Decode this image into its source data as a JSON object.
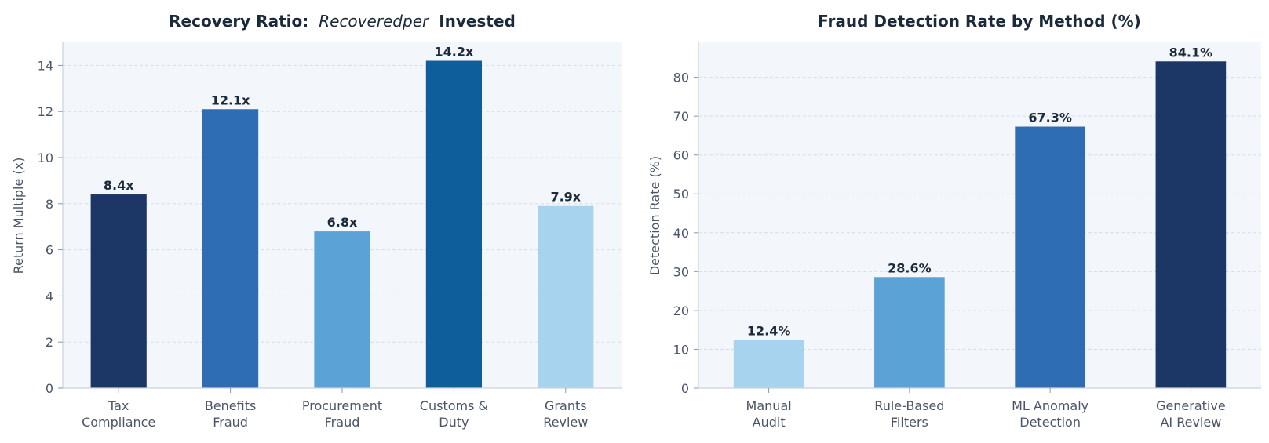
{
  "chart_data": [
    {
      "type": "bar",
      "title_bold_prefix": "Recovery Ratio:",
      "title_italic": "Recoveredper",
      "title_bold_suffix": "Invested",
      "xlabel": "",
      "ylabel": "Return Multiple (x)",
      "ylim": [
        0,
        15
      ],
      "yticks": [
        0,
        2,
        4,
        6,
        8,
        10,
        12,
        14
      ],
      "grid": true,
      "categories": [
        [
          "Tax",
          "Compliance"
        ],
        [
          "Benefits",
          "Fraud"
        ],
        [
          "Procurement",
          "Fraud"
        ],
        [
          "Customs &",
          "Duty"
        ],
        [
          "Grants",
          "Review"
        ]
      ],
      "values": [
        8.4,
        12.1,
        6.8,
        14.2,
        7.9
      ],
      "value_labels": [
        "8.4x",
        "12.1x",
        "6.8x",
        "14.2x",
        "7.9x"
      ],
      "colors": [
        "#1c3766",
        "#2e6db4",
        "#5ba3d6",
        "#0f5e9c",
        "#a8d3ee"
      ]
    },
    {
      "type": "bar",
      "title": "Fraud Detection Rate by Method (%)",
      "xlabel": "",
      "ylabel": "Detection Rate (%)",
      "ylim": [
        0,
        89
      ],
      "yticks": [
        0,
        10,
        20,
        30,
        40,
        50,
        60,
        70,
        80
      ],
      "grid": true,
      "categories": [
        [
          "Manual",
          "Audit"
        ],
        [
          "Rule-Based",
          "Filters"
        ],
        [
          "ML Anomaly",
          "Detection"
        ],
        [
          "Generative",
          "AI Review"
        ]
      ],
      "values": [
        12.4,
        28.6,
        67.3,
        84.1
      ],
      "value_labels": [
        "12.4%",
        "28.6%",
        "67.3%",
        "84.1%"
      ],
      "colors": [
        "#a8d3ee",
        "#5ba3d6",
        "#2e6db4",
        "#1c3766"
      ]
    }
  ],
  "theme": {
    "plot_background": "#f3f6fb",
    "text_dark": "#1b2a3a",
    "text_muted": "#4a5568"
  }
}
